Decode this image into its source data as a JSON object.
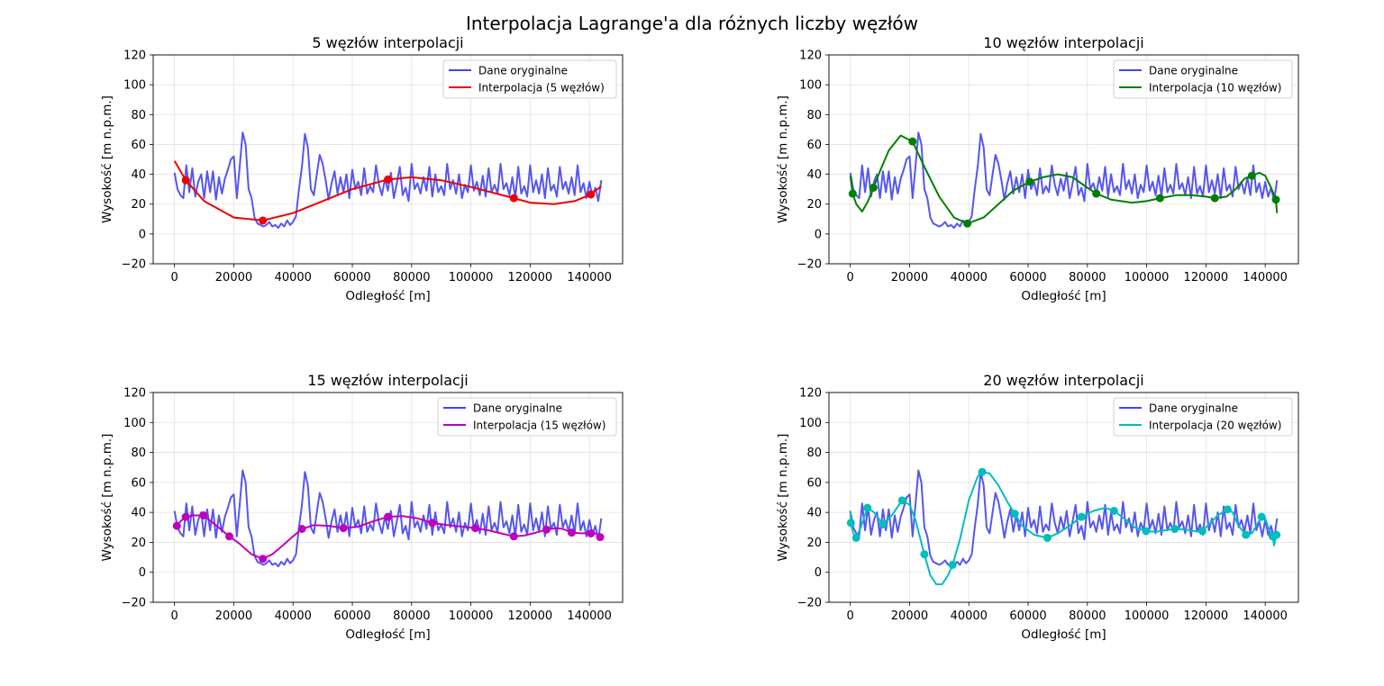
{
  "chart_data": {
    "suptitle": "Interpolacja Lagrange'a dla różnych liczby węzłów",
    "original_series": {
      "name": "Dane oryginalne",
      "color": "#4444ee",
      "x": [
        0,
        1000,
        2000,
        3000,
        4000,
        5000,
        6000,
        7000,
        8000,
        9000,
        10000,
        11000,
        12000,
        13000,
        14000,
        15000,
        16000,
        17000,
        18000,
        19000,
        20000,
        21000,
        22000,
        23000,
        24000,
        25000,
        26000,
        27000,
        28000,
        29000,
        30000,
        31000,
        32000,
        33000,
        34000,
        35000,
        36000,
        37000,
        38000,
        39000,
        40000,
        41000,
        42000,
        43000,
        44000,
        45000,
        46000,
        47000,
        48000,
        49000,
        50000,
        51000,
        52000,
        53000,
        54000,
        55000,
        56000,
        57000,
        58000,
        59000,
        60000,
        61000,
        62000,
        63000,
        64000,
        65000,
        66000,
        67000,
        68000,
        69000,
        70000,
        71000,
        72000,
        73000,
        74000,
        75000,
        76000,
        77000,
        78000,
        79000,
        80000,
        81000,
        82000,
        83000,
        84000,
        85000,
        86000,
        87000,
        88000,
        89000,
        90000,
        91000,
        92000,
        93000,
        94000,
        95000,
        96000,
        97000,
        98000,
        99000,
        100000,
        101000,
        102000,
        103000,
        104000,
        105000,
        106000,
        107000,
        108000,
        109000,
        110000,
        111000,
        112000,
        113000,
        114000,
        115000,
        116000,
        117000,
        118000,
        119000,
        120000,
        121000,
        122000,
        123000,
        124000,
        125000,
        126000,
        127000,
        128000,
        129000,
        130000,
        131000,
        132000,
        133000,
        134000,
        135000,
        136000,
        137000,
        138000,
        139000,
        140000,
        141000,
        142000,
        143000,
        144000
      ],
      "y": [
        41,
        30,
        26,
        24,
        46,
        28,
        44,
        25,
        35,
        40,
        24,
        42,
        28,
        42,
        23,
        38,
        27,
        37,
        43,
        50,
        52,
        24,
        45,
        68,
        60,
        30,
        24,
        11,
        7,
        6,
        5,
        6,
        8,
        5,
        6,
        4,
        7,
        5,
        9,
        6,
        8,
        12,
        30,
        45,
        67,
        58,
        30,
        26,
        40,
        53,
        47,
        36,
        23,
        34,
        42,
        27,
        38,
        28,
        40,
        24,
        43,
        30,
        35,
        26,
        44,
        27,
        32,
        28,
        46,
        33,
        26,
        37,
        29,
        41,
        24,
        34,
        45,
        26,
        31,
        22,
        47,
        30,
        34,
        27,
        38,
        29,
        45,
        25,
        40,
        28,
        32,
        26,
        47,
        30,
        36,
        27,
        40,
        24,
        33,
        28,
        46,
        29,
        35,
        26,
        39,
        25,
        44,
        28,
        33,
        27,
        47,
        30,
        34,
        26,
        38,
        24,
        45,
        27,
        32,
        25,
        46,
        28,
        36,
        27,
        40,
        24,
        44,
        29,
        33,
        25,
        45,
        30,
        35,
        27,
        38,
        26,
        46,
        28,
        34,
        24,
        35,
        25,
        31,
        22,
        36
      ]
    },
    "panels": [
      {
        "title": "5 węzłów interpolacji",
        "type": "line",
        "xlabel": "Odległość [m]",
        "ylabel": "Wysokość [m n.p.m.]",
        "xlim": [
          -7200,
          151200
        ],
        "ylim": [
          -20,
          120
        ],
        "xticks": [
          0,
          20000,
          40000,
          60000,
          80000,
          100000,
          120000,
          140000
        ],
        "yticks": [
          -20,
          0,
          20,
          40,
          60,
          80,
          100,
          120
        ],
        "grid": true,
        "legend": "top-right",
        "legend_original": "Dane oryginalne",
        "interp_name": "Interpolacja (5 węzłów)",
        "color": "#ee0000",
        "nodes": [
          [
            3800,
            36
          ],
          [
            29800,
            9
          ],
          [
            72000,
            36.5
          ],
          [
            114500,
            24
          ],
          [
            140500,
            26.5
          ]
        ],
        "curve": [
          [
            0,
            49
          ],
          [
            3800,
            36
          ],
          [
            10000,
            22
          ],
          [
            20000,
            11
          ],
          [
            29800,
            9
          ],
          [
            40000,
            14
          ],
          [
            50000,
            22
          ],
          [
            60000,
            30
          ],
          [
            72000,
            36.5
          ],
          [
            80000,
            38
          ],
          [
            90000,
            36
          ],
          [
            100000,
            31.5
          ],
          [
            114500,
            24
          ],
          [
            120000,
            21
          ],
          [
            128000,
            20
          ],
          [
            135000,
            22
          ],
          [
            140500,
            26.5
          ],
          [
            144000,
            32
          ]
        ]
      },
      {
        "title": "10 węzłów interpolacji",
        "type": "line",
        "xlabel": "Odległość [m]",
        "ylabel": "Wysokość [m n.p.m.]",
        "xlim": [
          -7200,
          151200
        ],
        "ylim": [
          -20,
          120
        ],
        "xticks": [
          0,
          20000,
          40000,
          60000,
          80000,
          100000,
          120000,
          140000
        ],
        "yticks": [
          -20,
          0,
          20,
          40,
          60,
          80,
          100,
          120
        ],
        "grid": true,
        "legend": "top-right",
        "legend_original": "Dane oryginalne",
        "interp_name": "Interpolacja (10 węzłów)",
        "color": "#008000",
        "nodes": [
          [
            800,
            27
          ],
          [
            7800,
            31
          ],
          [
            21000,
            62
          ],
          [
            39500,
            7
          ],
          [
            60500,
            35
          ],
          [
            83000,
            27
          ],
          [
            104500,
            24
          ],
          [
            123000,
            24
          ],
          [
            135500,
            39
          ],
          [
            143600,
            23
          ]
        ],
        "curve": [
          [
            0,
            39
          ],
          [
            800,
            27
          ],
          [
            2000,
            20
          ],
          [
            4000,
            15
          ],
          [
            6000,
            22
          ],
          [
            7800,
            31
          ],
          [
            10000,
            42
          ],
          [
            13000,
            56
          ],
          [
            17000,
            66
          ],
          [
            21000,
            62
          ],
          [
            25000,
            45
          ],
          [
            30000,
            25
          ],
          [
            35000,
            11
          ],
          [
            39500,
            7
          ],
          [
            45000,
            11
          ],
          [
            50000,
            20
          ],
          [
            55000,
            29
          ],
          [
            60500,
            35
          ],
          [
            65000,
            38
          ],
          [
            70000,
            40
          ],
          [
            75000,
            38
          ],
          [
            80000,
            31
          ],
          [
            83000,
            27
          ],
          [
            88000,
            23
          ],
          [
            95000,
            21
          ],
          [
            100000,
            22
          ],
          [
            104500,
            24
          ],
          [
            110000,
            26
          ],
          [
            115000,
            26
          ],
          [
            120000,
            25
          ],
          [
            123000,
            24
          ],
          [
            127000,
            25
          ],
          [
            130000,
            30
          ],
          [
            133000,
            37
          ],
          [
            135500,
            39
          ],
          [
            138000,
            41
          ],
          [
            140000,
            39
          ],
          [
            142000,
            31
          ],
          [
            143600,
            23
          ],
          [
            144000,
            14
          ]
        ]
      },
      {
        "title": "15 węzłów interpolacji",
        "type": "line",
        "xlabel": "Odległość [m]",
        "ylabel": "Wysokość [m n.p.m.]",
        "xlim": [
          -7200,
          151200
        ],
        "ylim": [
          -20,
          120
        ],
        "xticks": [
          0,
          20000,
          40000,
          60000,
          80000,
          100000,
          120000,
          140000
        ],
        "yticks": [
          -20,
          0,
          20,
          40,
          60,
          80,
          100,
          120
        ],
        "grid": true,
        "legend": "top-right",
        "legend_original": "Dane oryginalne",
        "interp_name": "Interpolacja (15 węzłów)",
        "color": "#c000c0",
        "nodes": [
          [
            800,
            31
          ],
          [
            3800,
            37
          ],
          [
            9800,
            38
          ],
          [
            18500,
            24
          ],
          [
            29800,
            9
          ],
          [
            43000,
            29
          ],
          [
            57000,
            29.5
          ],
          [
            72000,
            37
          ],
          [
            87000,
            33
          ],
          [
            101500,
            29.5
          ],
          [
            114500,
            24
          ],
          [
            125500,
            28.5
          ],
          [
            134000,
            26.5
          ],
          [
            140500,
            26
          ],
          [
            143600,
            23.5
          ]
        ],
        "curve": [
          [
            0,
            30
          ],
          [
            800,
            31
          ],
          [
            2000,
            34
          ],
          [
            3800,
            37
          ],
          [
            6000,
            38
          ],
          [
            9800,
            38
          ],
          [
            13000,
            33
          ],
          [
            18500,
            24
          ],
          [
            22000,
            19
          ],
          [
            26000,
            12
          ],
          [
            29800,
            9
          ],
          [
            33000,
            12
          ],
          [
            36000,
            17
          ],
          [
            40000,
            24
          ],
          [
            43000,
            29
          ],
          [
            47000,
            31.5
          ],
          [
            52000,
            31
          ],
          [
            57000,
            29.5
          ],
          [
            62000,
            30.5
          ],
          [
            67000,
            34
          ],
          [
            72000,
            37
          ],
          [
            77000,
            37.5
          ],
          [
            82000,
            36
          ],
          [
            87000,
            33
          ],
          [
            92000,
            31.5
          ],
          [
            97000,
            30.5
          ],
          [
            101500,
            29.5
          ],
          [
            106000,
            28
          ],
          [
            110000,
            26
          ],
          [
            114500,
            24
          ],
          [
            118000,
            24.5
          ],
          [
            122000,
            26.5
          ],
          [
            125500,
            28.5
          ],
          [
            129000,
            29.5
          ],
          [
            131000,
            29
          ],
          [
            134000,
            26.5
          ],
          [
            137000,
            26
          ],
          [
            140500,
            26
          ],
          [
            142000,
            26
          ],
          [
            143600,
            23.5
          ]
        ]
      },
      {
        "title": "20 węzłów interpolacji",
        "type": "line",
        "xlabel": "Odległość [m]",
        "ylabel": "Wysokość [m n.p.m.]",
        "xlim": [
          -7200,
          151200
        ],
        "ylim": [
          -20,
          120
        ],
        "xticks": [
          0,
          20000,
          40000,
          60000,
          80000,
          100000,
          120000,
          140000
        ],
        "yticks": [
          -20,
          0,
          20,
          40,
          60,
          80,
          100,
          120
        ],
        "grid": true,
        "legend": "top-right",
        "legend_original": "Dane oryginalne",
        "interp_name": "Interpolacja (20 węzłów)",
        "color": "#00bebe",
        "nodes": [
          [
            200,
            33
          ],
          [
            2000,
            23
          ],
          [
            5800,
            43
          ],
          [
            11000,
            32
          ],
          [
            17500,
            48
          ],
          [
            25000,
            12
          ],
          [
            34500,
            5
          ],
          [
            44500,
            67
          ],
          [
            55500,
            39
          ],
          [
            66500,
            23
          ],
          [
            78000,
            37
          ],
          [
            89000,
            41
          ],
          [
            99800,
            27.5
          ],
          [
            109500,
            29
          ],
          [
            118800,
            27.5
          ],
          [
            127300,
            42
          ],
          [
            133500,
            25
          ],
          [
            138800,
            37
          ],
          [
            142500,
            24
          ],
          [
            143800,
            25
          ]
        ],
        "curve": [
          [
            0,
            41
          ],
          [
            200,
            33
          ],
          [
            1000,
            26
          ],
          [
            2000,
            23
          ],
          [
            3500,
            30
          ],
          [
            5800,
            43
          ],
          [
            8000,
            40
          ],
          [
            11000,
            32
          ],
          [
            14000,
            38
          ],
          [
            17500,
            48
          ],
          [
            20000,
            45
          ],
          [
            22000,
            35
          ],
          [
            25000,
            12
          ],
          [
            27000,
            -2
          ],
          [
            29000,
            -8
          ],
          [
            31000,
            -8
          ],
          [
            33000,
            -2
          ],
          [
            34500,
            5
          ],
          [
            37000,
            22
          ],
          [
            40000,
            48
          ],
          [
            43000,
            64
          ],
          [
            44500,
            67
          ],
          [
            47000,
            66
          ],
          [
            50000,
            58
          ],
          [
            53000,
            47
          ],
          [
            55500,
            39
          ],
          [
            58000,
            31
          ],
          [
            62000,
            25
          ],
          [
            66500,
            23
          ],
          [
            70000,
            26
          ],
          [
            74000,
            31
          ],
          [
            78000,
            37
          ],
          [
            82000,
            41
          ],
          [
            86000,
            43
          ],
          [
            89000,
            41
          ],
          [
            93000,
            35
          ],
          [
            96000,
            30
          ],
          [
            99800,
            27.5
          ],
          [
            103000,
            27
          ],
          [
            106000,
            28
          ],
          [
            109500,
            29
          ],
          [
            113000,
            28.5
          ],
          [
            116000,
            27.5
          ],
          [
            118800,
            27.5
          ],
          [
            121000,
            32
          ],
          [
            124000,
            38
          ],
          [
            127300,
            42
          ],
          [
            129000,
            40
          ],
          [
            131000,
            31
          ],
          [
            133500,
            25
          ],
          [
            135500,
            26
          ],
          [
            137000,
            31
          ],
          [
            138800,
            37
          ],
          [
            140000,
            36
          ],
          [
            141000,
            30
          ],
          [
            142500,
            24
          ],
          [
            143000,
            18
          ],
          [
            143800,
            25
          ]
        ]
      }
    ]
  }
}
